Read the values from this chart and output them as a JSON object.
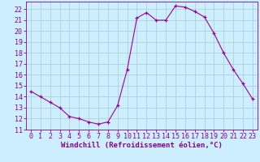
{
  "x": [
    0,
    1,
    2,
    3,
    4,
    5,
    6,
    7,
    8,
    9,
    10,
    11,
    12,
    13,
    14,
    15,
    16,
    17,
    18,
    19,
    20,
    21,
    22,
    23
  ],
  "y": [
    14.5,
    14.0,
    13.5,
    13.0,
    12.2,
    12.0,
    11.7,
    11.5,
    11.7,
    13.2,
    16.5,
    21.2,
    21.7,
    21.0,
    21.0,
    22.3,
    22.2,
    21.8,
    21.3,
    19.8,
    18.0,
    16.5,
    15.2,
    13.8
  ],
  "line_color": "#990099",
  "marker_color": "#990099",
  "bg_color": "#cceeff",
  "grid_color": "#aacccc",
  "xlabel": "Windchill (Refroidissement éolien,°C)",
  "xlim": [
    -0.5,
    23.5
  ],
  "ylim": [
    11,
    22.7
  ],
  "yticks": [
    11,
    12,
    13,
    14,
    15,
    16,
    17,
    18,
    19,
    20,
    21,
    22
  ],
  "xticks": [
    0,
    1,
    2,
    3,
    4,
    5,
    6,
    7,
    8,
    9,
    10,
    11,
    12,
    13,
    14,
    15,
    16,
    17,
    18,
    19,
    20,
    21,
    22,
    23
  ],
  "xlabel_fontsize": 6.5,
  "tick_fontsize": 6.0,
  "label_color": "#880088",
  "spine_color": "#880088"
}
